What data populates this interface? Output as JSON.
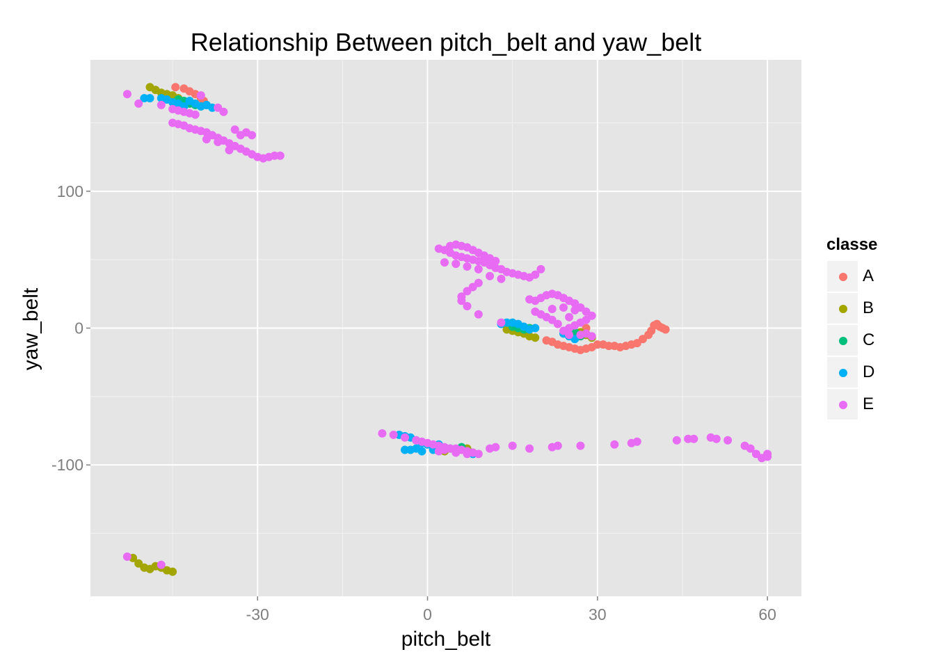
{
  "chart_data": {
    "type": "scatter",
    "title": "Relationship Between pitch_belt and yaw_belt",
    "xlabel": "pitch_belt",
    "ylabel": "yaw_belt",
    "xlim": [
      -59.5,
      66
    ],
    "ylim": [
      -196,
      196
    ],
    "x_ticks": [
      -30,
      0,
      30,
      60
    ],
    "x_tick_labels": [
      "-30",
      "0",
      "30",
      "60"
    ],
    "y_ticks": [
      -100,
      0,
      100
    ],
    "y_tick_labels": [
      "-100",
      "0",
      "100"
    ],
    "grid": true,
    "legend": {
      "title": "classe",
      "position": "right"
    },
    "series": [
      {
        "name": "A",
        "color": "#F8766D",
        "points": [
          [
            -44.5,
            176
          ],
          [
            -43,
            175
          ],
          [
            -42,
            173
          ],
          [
            -41,
            171
          ],
          [
            -40,
            168
          ],
          [
            -39.5,
            166
          ],
          [
            21,
            -9
          ],
          [
            22,
            -10
          ],
          [
            23,
            -12
          ],
          [
            24,
            -13
          ],
          [
            25,
            -14
          ],
          [
            26,
            -15
          ],
          [
            27,
            -16
          ],
          [
            28,
            -15
          ],
          [
            29,
            -14
          ],
          [
            30,
            -12
          ],
          [
            31,
            -12
          ],
          [
            32,
            -13
          ],
          [
            33,
            -13
          ],
          [
            34,
            -14
          ],
          [
            35,
            -13
          ],
          [
            36,
            -12
          ],
          [
            37,
            -11
          ],
          [
            38,
            -8
          ],
          [
            39,
            -5
          ],
          [
            39.5,
            -2
          ],
          [
            40,
            2
          ],
          [
            40.5,
            3
          ],
          [
            41,
            1
          ],
          [
            41.5,
            0
          ],
          [
            42,
            -1
          ],
          [
            26,
            -5
          ],
          [
            28,
            0
          ]
        ]
      },
      {
        "name": "B",
        "color": "#A3A500",
        "points": [
          [
            -49,
            176
          ],
          [
            -48,
            174
          ],
          [
            -47,
            172
          ],
          [
            -46,
            171
          ],
          [
            -45,
            170
          ],
          [
            -44,
            168
          ],
          [
            14,
            -1
          ],
          [
            15,
            -2
          ],
          [
            16,
            -3
          ],
          [
            17,
            -4
          ],
          [
            18,
            -6
          ],
          [
            19,
            -7
          ],
          [
            27,
            -3
          ],
          [
            28,
            -5
          ],
          [
            29,
            -7
          ],
          [
            -52,
            -168
          ],
          [
            -51,
            -172
          ],
          [
            -50,
            -175
          ],
          [
            -49,
            -176
          ],
          [
            -48,
            -174
          ],
          [
            -47,
            -175
          ],
          [
            -46,
            -177
          ],
          [
            -45,
            -178
          ],
          [
            3,
            -90
          ],
          [
            5,
            -89
          ],
          [
            7,
            -88
          ],
          [
            8,
            -91
          ]
        ]
      },
      {
        "name": "C",
        "color": "#00BF7D",
        "points": [
          [
            -44,
            167
          ],
          [
            -43,
            166
          ],
          [
            -42,
            164
          ],
          [
            -41,
            163
          ],
          [
            -40,
            162
          ],
          [
            -39,
            163
          ],
          [
            15,
            1
          ],
          [
            16,
            0
          ],
          [
            17,
            -1
          ],
          [
            18,
            0
          ],
          [
            25,
            -1
          ],
          [
            26,
            -3
          ],
          [
            27,
            -6
          ],
          [
            4,
            -88
          ],
          [
            6,
            -87
          ]
        ]
      },
      {
        "name": "D",
        "color": "#00B0F6",
        "points": [
          [
            -50,
            168
          ],
          [
            -49,
            168
          ],
          [
            -47,
            168
          ],
          [
            -46,
            167
          ],
          [
            -45,
            165
          ],
          [
            -44,
            164
          ],
          [
            -43,
            162
          ],
          [
            -42,
            166
          ],
          [
            -41,
            164
          ],
          [
            -40,
            162
          ],
          [
            -39,
            163
          ],
          [
            -38,
            161
          ],
          [
            13,
            3
          ],
          [
            14,
            4
          ],
          [
            15,
            4
          ],
          [
            16,
            3
          ],
          [
            17,
            1
          ],
          [
            18,
            -1
          ],
          [
            19,
            0
          ],
          [
            24,
            -4
          ],
          [
            25,
            -6
          ],
          [
            26,
            -8
          ],
          [
            -5,
            -78
          ],
          [
            -4,
            -79
          ],
          [
            -3,
            -80
          ],
          [
            -2,
            -82
          ],
          [
            -1,
            -84
          ],
          [
            0,
            -85
          ],
          [
            1,
            -86
          ],
          [
            2,
            -85
          ],
          [
            -4,
            -89
          ],
          [
            -3,
            -89
          ],
          [
            -2,
            -88
          ],
          [
            -1,
            -90
          ],
          [
            1,
            -89
          ],
          [
            3,
            -88
          ],
          [
            5,
            -89
          ],
          [
            7,
            -90
          ],
          [
            8,
            -92
          ]
        ]
      },
      {
        "name": "E",
        "color": "#E76BF3",
        "points": [
          [
            -53,
            171
          ],
          [
            -51,
            164
          ],
          [
            -47,
            163
          ],
          [
            -45,
            160
          ],
          [
            -44,
            159
          ],
          [
            -43,
            158
          ],
          [
            -42,
            157
          ],
          [
            -41,
            156
          ],
          [
            -40,
            170
          ],
          [
            -37,
            161
          ],
          [
            -36,
            158
          ],
          [
            -45,
            150
          ],
          [
            -44,
            149
          ],
          [
            -43,
            148
          ],
          [
            -42,
            146
          ],
          [
            -41,
            145
          ],
          [
            -40,
            144
          ],
          [
            -39,
            143
          ],
          [
            -38,
            141
          ],
          [
            -37,
            139
          ],
          [
            -36,
            137
          ],
          [
            -35,
            135
          ],
          [
            -34,
            133
          ],
          [
            -33,
            131
          ],
          [
            -32,
            129
          ],
          [
            -31,
            127
          ],
          [
            -30,
            125
          ],
          [
            -29,
            124
          ],
          [
            -28,
            125
          ],
          [
            -27,
            126
          ],
          [
            -26,
            126
          ],
          [
            -39,
            138
          ],
          [
            -37,
            136
          ],
          [
            -35,
            130
          ],
          [
            -33,
            141
          ],
          [
            -31,
            141
          ],
          [
            -34,
            145
          ],
          [
            -32,
            143
          ],
          [
            2,
            58
          ],
          [
            3,
            57
          ],
          [
            4,
            55
          ],
          [
            5,
            53
          ],
          [
            6,
            52
          ],
          [
            7,
            51
          ],
          [
            8,
            50
          ],
          [
            9,
            49
          ],
          [
            10,
            48
          ],
          [
            11,
            46
          ],
          [
            12,
            44
          ],
          [
            13,
            43
          ],
          [
            14,
            41
          ],
          [
            15,
            40
          ],
          [
            16,
            39
          ],
          [
            17,
            38
          ],
          [
            18,
            37
          ],
          [
            19,
            39
          ],
          [
            20,
            43
          ],
          [
            4,
            60
          ],
          [
            5,
            61
          ],
          [
            6,
            60
          ],
          [
            7,
            59
          ],
          [
            8,
            57
          ],
          [
            9,
            55
          ],
          [
            10,
            53
          ],
          [
            11,
            51
          ],
          [
            12,
            49
          ],
          [
            3,
            48
          ],
          [
            5,
            47
          ],
          [
            7,
            45
          ],
          [
            9,
            43
          ],
          [
            11,
            38
          ],
          [
            13,
            36
          ],
          [
            9,
            33
          ],
          [
            8,
            30
          ],
          [
            7,
            27
          ],
          [
            6,
            23
          ],
          [
            6,
            20
          ],
          [
            7,
            16
          ],
          [
            9,
            10
          ],
          [
            18,
            21
          ],
          [
            19,
            20
          ],
          [
            20,
            22
          ],
          [
            21,
            24
          ],
          [
            22,
            25
          ],
          [
            23,
            24
          ],
          [
            24,
            22
          ],
          [
            25,
            20
          ],
          [
            26,
            18
          ],
          [
            27,
            15
          ],
          [
            28,
            12
          ],
          [
            29,
            9
          ],
          [
            28,
            6
          ],
          [
            27,
            4
          ],
          [
            26,
            2
          ],
          [
            25,
            0
          ],
          [
            24,
            -2
          ],
          [
            23,
            3
          ],
          [
            22,
            6
          ],
          [
            21,
            8
          ],
          [
            20,
            10
          ],
          [
            19,
            12
          ],
          [
            22,
            14
          ],
          [
            24,
            15
          ],
          [
            26,
            13
          ],
          [
            25,
            8
          ],
          [
            28,
            -4
          ],
          [
            29,
            -6
          ],
          [
            13,
            4
          ],
          [
            25,
            -5
          ],
          [
            27,
            -5
          ],
          [
            -8,
            -77
          ],
          [
            -6,
            -78
          ],
          [
            -4,
            -80
          ],
          [
            -2,
            -82
          ],
          [
            0,
            -84
          ],
          [
            2,
            -86
          ],
          [
            3,
            -87
          ],
          [
            4,
            -88
          ],
          [
            5,
            -88
          ],
          [
            6,
            -89
          ],
          [
            7,
            -90
          ],
          [
            8,
            -91
          ],
          [
            9,
            -92
          ],
          [
            1,
            -85
          ],
          [
            -1,
            -83
          ],
          [
            3,
            -89
          ],
          [
            5,
            -91
          ],
          [
            7,
            -92
          ],
          [
            2,
            -90
          ],
          [
            11,
            -88
          ],
          [
            12,
            -87
          ],
          [
            15,
            -86
          ],
          [
            18,
            -88
          ],
          [
            22,
            -87
          ],
          [
            23,
            -86
          ],
          [
            27,
            -86
          ],
          [
            33,
            -85
          ],
          [
            36,
            -84
          ],
          [
            37,
            -83
          ],
          [
            44,
            -82
          ],
          [
            46,
            -81
          ],
          [
            47,
            -81
          ],
          [
            50,
            -80
          ],
          [
            51,
            -81
          ],
          [
            53,
            -82
          ],
          [
            56,
            -86
          ],
          [
            57,
            -88
          ],
          [
            58,
            -92
          ],
          [
            59,
            -95
          ],
          [
            60,
            -94
          ],
          [
            60,
            -92
          ],
          [
            -53,
            -167
          ],
          [
            -47,
            -173
          ]
        ]
      }
    ]
  }
}
